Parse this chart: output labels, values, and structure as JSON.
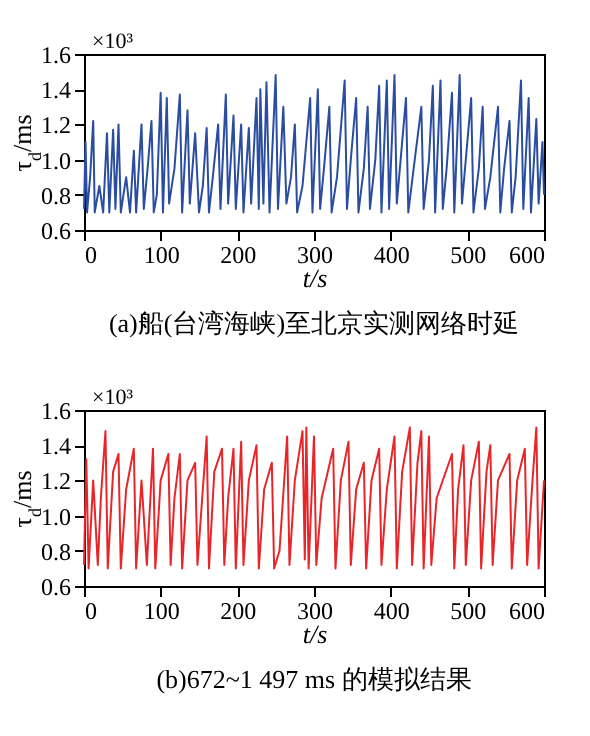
{
  "chart_data": [
    {
      "type": "line",
      "title": "(a)船(台湾海峡)至北京实测网络时延",
      "xlabel": "t/s",
      "ylabel": "τ$_{d}$/ms",
      "annotations": [
        "×10³"
      ],
      "xlim": [
        0,
        600
      ],
      "xticks": [
        0,
        100,
        200,
        300,
        400,
        500,
        600
      ],
      "ylim": [
        0.6,
        1.6
      ],
      "yticks": [
        0.6,
        0.8,
        {
          "value": 1,
          "label": "1.0"
        },
        1.2,
        1.4,
        1.6
      ],
      "grid": false,
      "series": [
        {
          "color": "#2b4da0",
          "x": [
            0,
            2,
            4,
            8,
            12,
            14,
            20,
            25,
            30,
            33,
            38,
            41,
            45,
            48,
            55,
            60,
            65,
            68,
            75,
            78,
            83,
            88,
            91,
            95,
            100,
            103,
            108,
            111,
            118,
            125,
            128,
            135,
            138,
            145,
            150,
            155,
            160,
            163,
            168,
            175,
            178,
            185,
            188,
            195,
            198,
            205,
            208,
            215,
            218,
            225,
            228,
            230,
            234,
            238,
            242,
            250,
            253,
            260,
            264,
            270,
            275,
            278,
            285,
            295,
            298,
            305,
            308,
            313,
            320,
            323,
            330,
            340,
            343,
            348,
            355,
            358,
            365,
            370,
            373,
            380,
            385,
            388,
            395,
            398,
            405,
            408,
            413,
            420,
            423,
            430,
            440,
            443,
            450,
            455,
            458,
            465,
            468,
            473,
            480,
            483,
            490,
            493,
            498,
            505,
            508,
            515,
            520,
            523,
            530,
            540,
            543,
            548,
            555,
            558,
            563,
            570,
            573,
            580,
            583,
            590,
            593,
            598,
            600
          ],
          "values": [
            0.72,
            1.1,
            0.7,
            0.9,
            1.22,
            0.7,
            0.85,
            0.7,
            1.15,
            0.7,
            1.17,
            0.72,
            1.2,
            0.7,
            0.9,
            0.7,
            1.05,
            0.7,
            1.2,
            0.72,
            0.95,
            1.22,
            0.7,
            0.8,
            1.38,
            0.7,
            1.35,
            0.75,
            0.95,
            1.37,
            0.7,
            1.28,
            0.75,
            1.15,
            0.7,
            0.85,
            1.18,
            0.7,
            0.9,
            1.2,
            0.72,
            1.37,
            0.75,
            1.25,
            0.72,
            1.2,
            0.7,
            1.18,
            0.75,
            1.35,
            0.72,
            1.4,
            0.75,
            1.44,
            0.7,
            1.48,
            0.72,
            1.3,
            0.75,
            0.9,
            1.2,
            0.7,
            0.85,
            1.35,
            0.7,
            1.4,
            0.72,
            0.95,
            1.3,
            0.7,
            0.9,
            1.45,
            0.72,
            1.0,
            1.35,
            0.7,
            0.95,
            1.3,
            0.72,
            1.0,
            1.42,
            0.7,
            1.45,
            0.72,
            1.48,
            0.75,
            1.0,
            1.35,
            0.7,
            0.95,
            1.3,
            0.72,
            1.0,
            1.42,
            0.7,
            1.45,
            0.72,
            0.95,
            1.38,
            0.7,
            1.48,
            0.75,
            1.0,
            1.35,
            0.7,
            0.95,
            1.3,
            0.72,
            0.9,
            1.3,
            0.7,
            0.95,
            1.22,
            0.7,
            0.9,
            1.45,
            0.72,
            1.35,
            0.7,
            1.23,
            0.75,
            1.1,
            0.8
          ]
        }
      ]
    },
    {
      "type": "line",
      "title": "(b)672~1 497 ms 的模拟结果",
      "xlabel": "t/s",
      "ylabel": "τ$_{d}$/ms",
      "annotations": [
        "×10³"
      ],
      "xlim": [
        0,
        600
      ],
      "xticks": [
        0,
        100,
        200,
        300,
        400,
        500,
        600
      ],
      "ylim": [
        0.6,
        1.6
      ],
      "yticks": [
        0.6,
        0.8,
        {
          "value": 1,
          "label": "1.0"
        },
        1.2,
        1.4,
        1.6
      ],
      "grid": false,
      "series": [
        {
          "color": "#e8262a",
          "x": [
            0,
            3,
            6,
            12,
            18,
            22,
            28,
            31,
            38,
            45,
            48,
            55,
            65,
            68,
            75,
            82,
            90,
            93,
            100,
            110,
            113,
            118,
            125,
            128,
            135,
            145,
            148,
            155,
            160,
            163,
            170,
            180,
            183,
            188,
            195,
            198,
            205,
            208,
            215,
            225,
            228,
            235,
            245,
            248,
            255,
            265,
            268,
            275,
            285,
            288,
            290,
            293,
            300,
            303,
            310,
            325,
            328,
            335,
            345,
            348,
            355,
            365,
            368,
            375,
            385,
            388,
            395,
            405,
            408,
            415,
            425,
            428,
            435,
            440,
            443,
            450,
            453,
            460,
            480,
            483,
            488,
            495,
            498,
            505,
            515,
            518,
            525,
            530,
            533,
            540,
            555,
            558,
            565,
            575,
            578,
            585,
            590,
            593,
            600
          ],
          "values": [
            0.72,
            1.32,
            0.7,
            1.2,
            0.72,
            1.1,
            1.48,
            0.7,
            1.25,
            1.35,
            0.7,
            1.15,
            1.38,
            0.7,
            1.2,
            0.72,
            1.38,
            0.7,
            1.2,
            1.35,
            0.72,
            1.1,
            1.35,
            0.7,
            1.2,
            1.3,
            0.72,
            1.15,
            1.45,
            0.7,
            1.25,
            1.38,
            0.72,
            1.1,
            1.38,
            0.7,
            1.42,
            0.72,
            1.2,
            1.4,
            0.7,
            1.15,
            1.3,
            0.7,
            0.8,
            1.45,
            0.72,
            1.2,
            1.48,
            0.75,
            1.5,
            0.7,
            1.45,
            0.72,
            1.1,
            1.38,
            0.7,
            1.2,
            1.42,
            0.72,
            1.15,
            1.3,
            0.7,
            1.2,
            1.38,
            0.72,
            1.15,
            1.45,
            0.7,
            1.25,
            1.5,
            0.72,
            1.3,
            1.48,
            0.7,
            1.45,
            0.72,
            1.1,
            1.35,
            0.7,
            1.15,
            1.4,
            0.72,
            1.2,
            1.42,
            0.7,
            1.25,
            1.4,
            0.72,
            1.2,
            1.35,
            0.7,
            1.2,
            1.38,
            0.72,
            1.2,
            1.5,
            0.7,
            1.2
          ]
        }
      ]
    }
  ]
}
